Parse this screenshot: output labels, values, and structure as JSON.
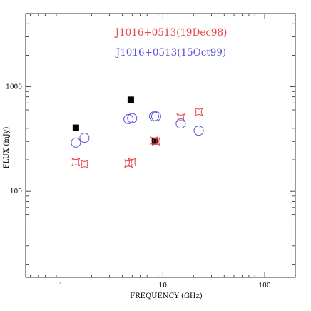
{
  "chart_data": {
    "type": "scatter",
    "title": "",
    "xlabel": "FREQUENCY (GHz)",
    "ylabel": "FLUX (mJy)",
    "x_scale": "log",
    "y_scale": "log",
    "xlim": [
      0.45,
      200
    ],
    "ylim": [
      15,
      5000
    ],
    "x_ticks": [
      1,
      10,
      100
    ],
    "x_tick_labels": [
      "1",
      "10",
      "100"
    ],
    "y_ticks": [
      100,
      1000
    ],
    "y_tick_labels": [
      "100",
      "1000"
    ],
    "grid": false,
    "legend_position": "top-center",
    "series": [
      {
        "name": "",
        "marker": "filled-square",
        "color": "#000000",
        "points": [
          [
            1.4,
            405
          ],
          [
            4.85,
            750
          ],
          [
            8.4,
            300
          ]
        ]
      },
      {
        "name": "J1016+0513(19Dec98)",
        "marker": "star",
        "color": "#e8474c",
        "points": [
          [
            1.4,
            190
          ],
          [
            1.7,
            182
          ],
          [
            4.6,
            184
          ],
          [
            5.0,
            190
          ],
          [
            8.2,
            305
          ],
          [
            8.6,
            300
          ],
          [
            15.0,
            505
          ],
          [
            22.5,
            575
          ]
        ]
      },
      {
        "name": "J1016+0513(15Oct99)",
        "marker": "open-circle",
        "color": "#5a55d8",
        "points": [
          [
            1.4,
            292
          ],
          [
            1.7,
            325
          ],
          [
            4.6,
            490
          ],
          [
            5.0,
            500
          ],
          [
            8.2,
            520
          ],
          [
            8.6,
            520
          ],
          [
            15.0,
            445
          ],
          [
            22.5,
            380
          ]
        ]
      }
    ]
  }
}
